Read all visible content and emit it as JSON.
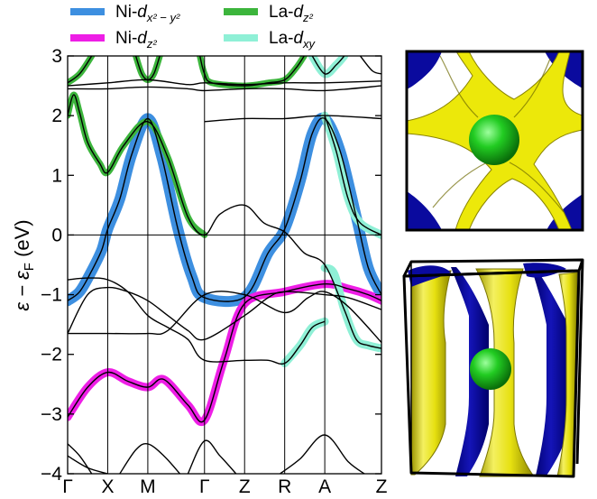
{
  "chart_data": {
    "type": "line",
    "ylabel": "ε − ε_F (eV)",
    "ylim": [
      -4,
      3
    ],
    "yticks": [
      -4,
      -3,
      -2,
      -1,
      0,
      1,
      2,
      3
    ],
    "ytick_labels": [
      "−4",
      "−3",
      "−2",
      "−1",
      "0",
      "1",
      "2",
      "3"
    ],
    "kpoints": [
      {
        "label": "Γ",
        "pos": 0
      },
      {
        "label": "X",
        "pos": 1
      },
      {
        "label": "M",
        "pos": 2
      },
      {
        "label": "Γ",
        "pos": 3.414
      },
      {
        "label": "Z",
        "pos": 4.414
      },
      {
        "label": "R",
        "pos": 5.414
      },
      {
        "label": "A",
        "pos": 6.414
      },
      {
        "label": "Z",
        "pos": 7.828
      }
    ],
    "xlim": [
      0,
      7.828
    ],
    "legend": {
      "placement": "top",
      "entries": [
        {
          "key": "ni_dx2y2",
          "label_base": "Ni-d",
          "label_sub": "x² − y²",
          "color": "#3d8fe0"
        },
        {
          "key": "ni_dz2",
          "label_base": "Ni-d",
          "label_sub": "z²",
          "color": "#ee1ee6"
        },
        {
          "key": "la_dz2",
          "label_base": "La-d",
          "label_sub": "z²",
          "color": "#3cb53c"
        },
        {
          "key": "la_dxy",
          "label_base": "La-d",
          "label_sub": "xy",
          "color": "#8ff0d6"
        }
      ]
    },
    "series": [
      {
        "key": "ni_dx2y2",
        "color": "#3d8fe0",
        "weight": 12,
        "points": [
          [
            0,
            -1.1
          ],
          [
            0.3,
            -0.95
          ],
          [
            0.6,
            -0.6
          ],
          [
            0.85,
            -0.25
          ],
          [
            1,
            0.1
          ],
          [
            1.3,
            0.6
          ],
          [
            1.6,
            1.35
          ],
          [
            2,
            1.95
          ],
          [
            2.35,
            1.3
          ],
          [
            2.75,
            0.1
          ],
          [
            3.1,
            -0.7
          ],
          [
            3.414,
            -1.05
          ],
          [
            4.414,
            -1.04
          ],
          [
            5.0,
            -0.3
          ],
          [
            5.414,
            0.1
          ],
          [
            5.8,
            0.9
          ],
          [
            6.1,
            1.7
          ],
          [
            6.414,
            1.95
          ],
          [
            6.8,
            1.4
          ],
          [
            7.2,
            0.3
          ],
          [
            7.5,
            -0.55
          ],
          [
            7.828,
            -1.0
          ]
        ]
      },
      {
        "key": "ni_dz2",
        "color": "#ee1ee6",
        "weight": 9,
        "points": [
          [
            0,
            -3.05
          ],
          [
            0.5,
            -2.55
          ],
          [
            1,
            -2.3
          ],
          [
            1.5,
            -2.45
          ],
          [
            2,
            -2.55
          ],
          [
            2.4,
            -2.42
          ],
          [
            3,
            -2.85
          ],
          [
            3.414,
            -3.1
          ],
          [
            3.9,
            -2.1
          ],
          [
            4.414,
            -1.15
          ],
          [
            5.414,
            -0.95
          ],
          [
            6.414,
            -0.82
          ],
          [
            7.0,
            -0.9
          ],
          [
            7.5,
            -1.0
          ],
          [
            7.828,
            -1.1
          ]
        ]
      },
      {
        "key": "la_dz2",
        "color": "#3cb53c",
        "weight": 7,
        "points": [
          [
            0,
            2.0
          ],
          [
            0.15,
            2.35
          ],
          [
            0.3,
            2.05
          ],
          [
            0.5,
            1.55
          ],
          [
            0.8,
            1.2
          ],
          [
            1,
            1.05
          ],
          [
            1.4,
            1.5
          ],
          [
            2,
            1.9
          ],
          [
            2.5,
            1.3
          ],
          [
            3.0,
            0.3
          ],
          [
            3.414,
            0.0
          ]
        ]
      },
      {
        "key": "la_dz2",
        "color": "#3cb53c",
        "weight": 7,
        "points": [
          [
            0,
            2.55
          ],
          [
            0.3,
            2.7
          ],
          [
            0.6,
            3.0
          ]
        ]
      },
      {
        "key": "la_dz2",
        "color": "#3cb53c",
        "weight": 7,
        "points": [
          [
            1.7,
            3.0
          ],
          [
            1.85,
            2.7
          ],
          [
            2,
            2.6
          ],
          [
            2.15,
            2.7
          ],
          [
            2.3,
            3.0
          ]
        ]
      },
      {
        "key": "la_dz2",
        "color": "#3cb53c",
        "weight": 7,
        "points": [
          [
            3.3,
            3.0
          ],
          [
            3.414,
            2.7
          ],
          [
            3.6,
            2.55
          ],
          [
            4.414,
            2.5
          ],
          [
            5.0,
            2.55
          ],
          [
            5.414,
            2.6
          ],
          [
            5.7,
            2.8
          ],
          [
            5.9,
            3.0
          ]
        ]
      },
      {
        "key": "la_dxy",
        "color": "#8ff0d6",
        "weight": 9,
        "points": [
          [
            6.414,
            -0.55
          ],
          [
            6.65,
            -0.65
          ],
          [
            6.9,
            -1.25
          ],
          [
            7.2,
            -1.75
          ],
          [
            7.5,
            -1.85
          ],
          [
            7.828,
            -1.9
          ]
        ]
      },
      {
        "key": "la_dxy",
        "color": "#8ff0d6",
        "weight": 9,
        "points": [
          [
            5.414,
            -2.15
          ],
          [
            5.8,
            -1.85
          ],
          [
            6.1,
            -1.55
          ],
          [
            6.414,
            -1.45
          ]
        ]
      },
      {
        "key": "la_dxy",
        "color": "#8ff0d6",
        "weight": 9,
        "points": [
          [
            6.414,
            2.0
          ],
          [
            6.7,
            1.4
          ],
          [
            7.0,
            0.6
          ],
          [
            7.3,
            0.2
          ],
          [
            7.828,
            0.0
          ]
        ]
      },
      {
        "key": "la_dxy",
        "color": "#8ff0d6",
        "weight": 9,
        "points": [
          [
            6.1,
            3.0
          ],
          [
            6.414,
            2.7
          ],
          [
            6.7,
            2.85
          ],
          [
            6.9,
            3.0
          ]
        ]
      }
    ],
    "bands": [
      [
        [
          0,
          -1.1
        ],
        [
          0.3,
          -0.95
        ],
        [
          0.6,
          -0.6
        ],
        [
          0.85,
          -0.25
        ],
        [
          1,
          0.1
        ],
        [
          1.3,
          0.6
        ],
        [
          1.6,
          1.35
        ],
        [
          2,
          1.95
        ],
        [
          2.35,
          1.3
        ],
        [
          2.75,
          0.1
        ],
        [
          3.1,
          -0.7
        ],
        [
          3.414,
          -1.05
        ],
        [
          4.414,
          -1.04
        ],
        [
          5.0,
          -0.3
        ],
        [
          5.414,
          0.1
        ],
        [
          5.8,
          0.9
        ],
        [
          6.1,
          1.7
        ],
        [
          6.414,
          1.95
        ],
        [
          6.8,
          1.4
        ],
        [
          7.2,
          0.3
        ],
        [
          7.5,
          -0.55
        ],
        [
          7.828,
          -1.0
        ]
      ],
      [
        [
          0,
          -3.05
        ],
        [
          0.5,
          -2.55
        ],
        [
          1,
          -2.3
        ],
        [
          1.5,
          -2.45
        ],
        [
          2,
          -2.55
        ],
        [
          2.4,
          -2.42
        ],
        [
          3,
          -2.85
        ],
        [
          3.414,
          -3.1
        ],
        [
          3.9,
          -2.1
        ],
        [
          4.414,
          -1.15
        ],
        [
          5.414,
          -0.95
        ],
        [
          6.414,
          -0.82
        ],
        [
          7.0,
          -0.9
        ],
        [
          7.5,
          -1.0
        ],
        [
          7.828,
          -1.1
        ]
      ],
      [
        [
          0,
          2.0
        ],
        [
          0.15,
          2.35
        ],
        [
          0.3,
          2.05
        ],
        [
          0.5,
          1.55
        ],
        [
          0.8,
          1.2
        ],
        [
          1,
          1.05
        ],
        [
          1.4,
          1.5
        ],
        [
          2,
          1.9
        ],
        [
          2.5,
          1.3
        ],
        [
          3.0,
          0.3
        ],
        [
          3.414,
          0.0
        ],
        [
          3.8,
          0.35
        ],
        [
          4.414,
          0.5
        ],
        [
          4.9,
          0.2
        ],
        [
          5.414,
          0.05
        ],
        [
          5.9,
          -0.3
        ],
        [
          6.414,
          -0.5
        ],
        [
          6.9,
          -1.25
        ],
        [
          7.2,
          -1.75
        ],
        [
          7.5,
          -1.85
        ],
        [
          7.828,
          -1.9
        ]
      ],
      [
        [
          0,
          -0.75
        ],
        [
          0.5,
          -0.72
        ],
        [
          1,
          -0.75
        ],
        [
          1.5,
          -0.95
        ],
        [
          2,
          -1.35
        ],
        [
          2.5,
          -1.55
        ],
        [
          3.0,
          -1.75
        ],
        [
          3.414,
          -2.1
        ],
        [
          4.414,
          -2.1
        ],
        [
          5.0,
          -2.1
        ],
        [
          5.414,
          -2.15
        ],
        [
          5.8,
          -1.85
        ],
        [
          6.1,
          -1.55
        ],
        [
          6.414,
          -1.45
        ]
      ],
      [
        [
          0,
          -1.65
        ],
        [
          0.5,
          -1.0
        ],
        [
          1,
          -0.88
        ],
        [
          1.5,
          -0.95
        ],
        [
          2,
          -1.1
        ],
        [
          2.5,
          -1.35
        ],
        [
          3,
          -1.6
        ],
        [
          3.414,
          -1.75
        ],
        [
          4.414,
          -1.35
        ],
        [
          5.0,
          -1.05
        ],
        [
          5.414,
          -0.95
        ],
        [
          6.414,
          -1.0
        ],
        [
          7.0,
          -1.05
        ],
        [
          7.828,
          -1.25
        ]
      ],
      [
        [
          0,
          -1.65
        ],
        [
          1,
          -1.65
        ],
        [
          2,
          -1.65
        ],
        [
          2.5,
          -1.6
        ],
        [
          3.414,
          -1.0
        ],
        [
          4.414,
          -1.0
        ],
        [
          5.414,
          -1.3
        ],
        [
          6.0,
          -1.05
        ],
        [
          6.414,
          -0.95
        ],
        [
          7.0,
          -1.2
        ],
        [
          7.828,
          -1.8
        ]
      ],
      [
        [
          0,
          -3.5
        ],
        [
          0.3,
          -3.7
        ],
        [
          0.6,
          -4.0
        ]
      ],
      [
        [
          0,
          -3.7
        ],
        [
          0.5,
          -3.9
        ],
        [
          1,
          -4.0
        ]
      ],
      [
        [
          1.3,
          -4.0
        ],
        [
          1.7,
          -3.6
        ],
        [
          2,
          -3.5
        ],
        [
          2.4,
          -3.7
        ],
        [
          2.8,
          -4.0
        ]
      ],
      [
        [
          3.0,
          -4.0
        ],
        [
          3.414,
          -3.45
        ],
        [
          3.8,
          -3.7
        ],
        [
          4.2,
          -4.0
        ]
      ],
      [
        [
          5.3,
          -4.0
        ],
        [
          5.8,
          -3.75
        ],
        [
          6.414,
          -3.35
        ],
        [
          7.0,
          -3.8
        ],
        [
          7.4,
          -4.0
        ]
      ],
      [
        [
          0,
          2.55
        ],
        [
          0.3,
          2.7
        ],
        [
          0.6,
          3.0
        ]
      ],
      [
        [
          0,
          2.45
        ],
        [
          1,
          2.45
        ],
        [
          2,
          2.48
        ],
        [
          3,
          2.45
        ],
        [
          3.414,
          2.42
        ],
        [
          4.414,
          2.45
        ],
        [
          5.414,
          2.45
        ],
        [
          6.414,
          2.42
        ],
        [
          7.828,
          2.5
        ]
      ],
      [
        [
          0,
          2.5
        ],
        [
          1,
          2.55
        ],
        [
          2,
          2.6
        ],
        [
          3,
          2.52
        ],
        [
          3.414,
          2.55
        ],
        [
          4.414,
          2.52
        ],
        [
          5.414,
          2.55
        ],
        [
          6.414,
          2.55
        ],
        [
          7.828,
          2.58
        ]
      ],
      [
        [
          1.7,
          3.0
        ],
        [
          1.85,
          2.7
        ],
        [
          2,
          2.6
        ],
        [
          2.15,
          2.7
        ],
        [
          2.3,
          3.0
        ]
      ],
      [
        [
          3.3,
          3.0
        ],
        [
          3.414,
          2.7
        ],
        [
          3.6,
          2.55
        ],
        [
          4.414,
          2.5
        ],
        [
          5.0,
          2.55
        ],
        [
          5.414,
          2.6
        ],
        [
          5.7,
          2.8
        ],
        [
          5.9,
          3.0
        ]
      ],
      [
        [
          3.414,
          1.9
        ],
        [
          4.414,
          1.95
        ],
        [
          5.414,
          1.95
        ],
        [
          6.414,
          2.0
        ],
        [
          7.828,
          1.95
        ]
      ],
      [
        [
          6.1,
          3.0
        ],
        [
          6.414,
          2.7
        ],
        [
          6.7,
          2.85
        ],
        [
          6.9,
          3.0
        ]
      ],
      [
        [
          6.414,
          2.0
        ],
        [
          6.7,
          1.4
        ],
        [
          7.0,
          0.6
        ],
        [
          7.3,
          0.2
        ],
        [
          7.828,
          0.0
        ]
      ],
      [
        [
          7.3,
          3.0
        ],
        [
          7.6,
          2.75
        ],
        [
          7.828,
          2.7
        ]
      ]
    ],
    "color_fermi_line": "#000000",
    "color_band": "#000000"
  },
  "fermi_surface": {
    "top_view": {
      "colors": {
        "sheet": "#ece80a",
        "pocket": "#0a0a9e",
        "sphere": "#1ec81e",
        "background": "#ffffff"
      }
    },
    "perspective_view": {
      "colors": {
        "sheet": "#ece80a",
        "pocket": "#0a0a9e",
        "sphere": "#1ec81e",
        "frame": "#000000"
      }
    }
  }
}
